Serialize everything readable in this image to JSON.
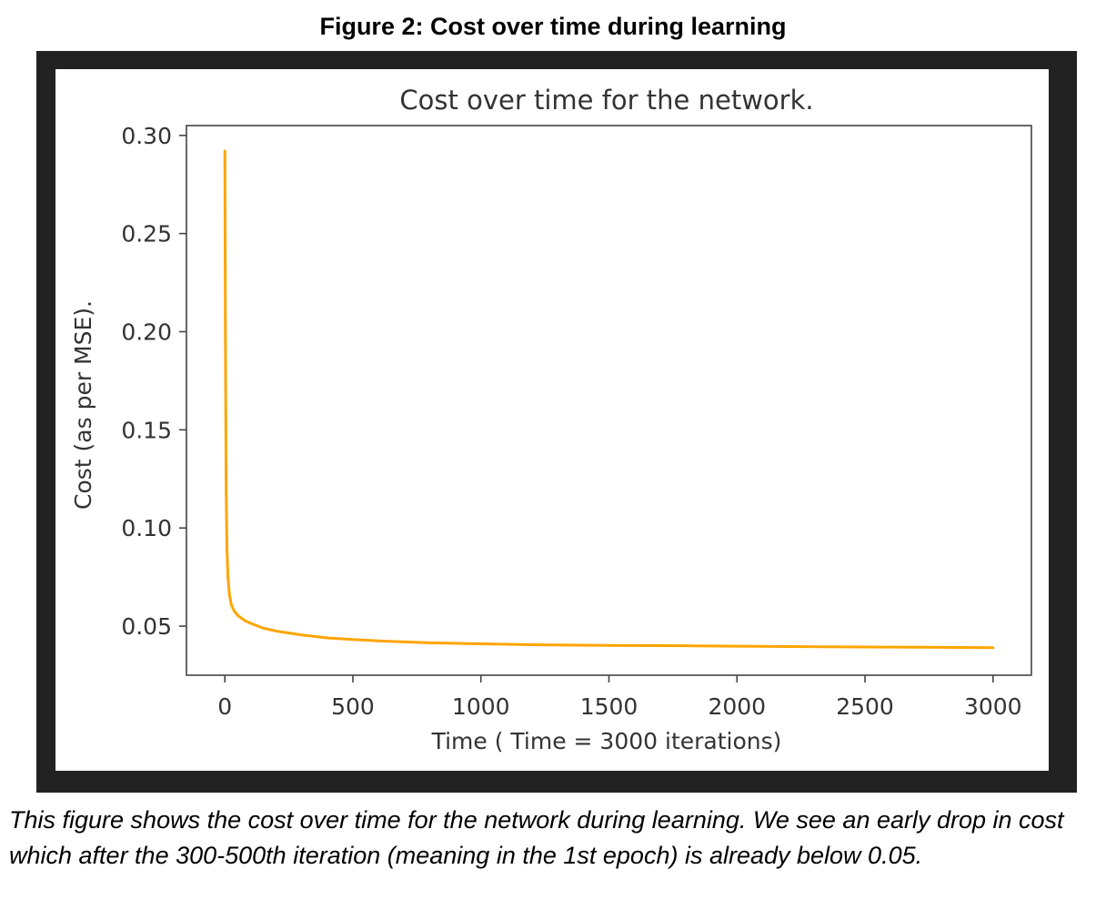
{
  "figure_heading": "Figure 2: Cost over time during learning",
  "description": "This figure shows the cost over time for the network during learning. We see an early drop in cost which after the 300-500th iteration (meaning in the 1st epoch) is already below 0.05.",
  "chart_data": {
    "type": "line",
    "title": "Cost over time for the network.",
    "xlabel": "Time ( Time = 3000 iterations)",
    "ylabel": "Cost (as per MSE).",
    "xlim": [
      -150,
      3150
    ],
    "ylim": [
      0.025,
      0.305
    ],
    "xticks": [
      0,
      500,
      1000,
      1500,
      2000,
      2500,
      3000
    ],
    "xtick_labels": [
      "0",
      "500",
      "1000",
      "1500",
      "2000",
      "2500",
      "3000"
    ],
    "yticks": [
      0.05,
      0.1,
      0.15,
      0.2,
      0.25,
      0.3
    ],
    "ytick_labels": [
      "0.05",
      "0.10",
      "0.15",
      "0.20",
      "0.25",
      "0.30"
    ],
    "grid": false,
    "series": [
      {
        "color": "#ffa500",
        "x": [
          0,
          2,
          5,
          8,
          12,
          18,
          25,
          35,
          50,
          75,
          100,
          150,
          200,
          300,
          400,
          500,
          600,
          700,
          800,
          1000,
          1200,
          1500,
          1800,
          2000,
          2200,
          2500,
          2800,
          3000
        ],
        "y": [
          0.292,
          0.2,
          0.12,
          0.09,
          0.075,
          0.066,
          0.061,
          0.058,
          0.0555,
          0.053,
          0.0515,
          0.049,
          0.0475,
          0.0455,
          0.044,
          0.0432,
          0.0425,
          0.042,
          0.0415,
          0.041,
          0.0405,
          0.0402,
          0.04,
          0.0398,
          0.0396,
          0.0394,
          0.0392,
          0.039
        ]
      }
    ]
  }
}
